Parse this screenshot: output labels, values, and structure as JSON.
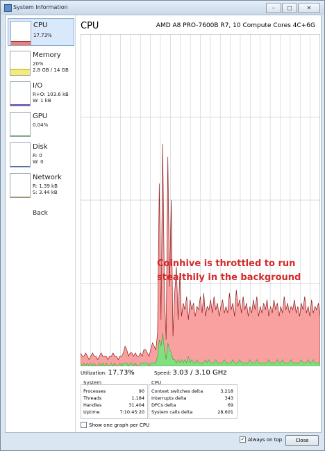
{
  "window": {
    "title": "System Information",
    "controls": {
      "minimize": "–",
      "maximize": "□",
      "close": "✕"
    }
  },
  "sidebar": {
    "items": [
      {
        "name": "CPU",
        "lines": [
          "17.73%"
        ]
      },
      {
        "name": "Memory",
        "lines": [
          "20%",
          "2.8 GB / 14 GB"
        ]
      },
      {
        "name": "I/O",
        "lines": [
          "R+O: 103.6 kB",
          "W: 1 kB"
        ]
      },
      {
        "name": "GPU",
        "lines": [
          "0.04%"
        ]
      },
      {
        "name": "Disk",
        "lines": [
          "R: 0",
          "W: 0"
        ]
      },
      {
        "name": "Network",
        "lines": [
          "R: 1.39 kB",
          "S: 3.44 kB"
        ]
      }
    ],
    "back": "Back"
  },
  "main": {
    "title": "CPU",
    "model": "AMD A8 PRO-7600B R7, 10 Compute Cores 4C+6G",
    "annotation": [
      "Coinhive is throttled to run",
      "stealthily in the background"
    ],
    "utilization_label": "Utilization:",
    "utilization_value": "17.73%",
    "speed_label": "Speed:",
    "speed_value": "3.03 / 3.10 GHz",
    "system": {
      "label": "System",
      "rows": [
        {
          "k": "Processes",
          "v": "90"
        },
        {
          "k": "Threads",
          "v": "1,184"
        },
        {
          "k": "Handles",
          "v": "31,404"
        },
        {
          "k": "Uptime",
          "v": "7:10:45:20"
        }
      ]
    },
    "cpu": {
      "label": "CPU",
      "rows": [
        {
          "k": "Context switches delta",
          "v": "3,218"
        },
        {
          "k": "Interrupts delta",
          "v": "343"
        },
        {
          "k": "DPCs delta",
          "v": "69"
        },
        {
          "k": "System calls delta",
          "v": "28,601"
        }
      ]
    },
    "show_one_graph": "Show one graph per CPU"
  },
  "footer": {
    "always_on_top": "Always on top",
    "close": "Close"
  },
  "colors": {
    "graph_fill": "#f9a0a0",
    "graph_line": "#8a1e1e",
    "kernel_fill": "#7fe07f",
    "annotation": "#d42a2a",
    "grid": "#c9cdd2"
  },
  "chart_data": {
    "type": "area",
    "ylim": [
      0,
      100
    ],
    "series": [
      {
        "values": [
          4,
          3,
          3,
          4,
          3,
          2,
          3,
          4,
          3,
          3,
          2,
          3,
          4,
          3,
          3,
          3,
          2,
          3,
          3,
          4,
          3,
          3,
          2,
          3,
          3,
          4,
          6,
          5,
          3,
          4,
          4,
          3,
          4,
          3,
          3,
          4,
          3,
          5,
          5,
          4,
          3,
          5,
          7,
          6,
          5,
          10,
          55,
          14,
          67,
          22,
          8,
          63,
          24,
          50,
          9,
          22,
          30,
          14,
          28,
          15,
          19,
          17,
          21,
          14,
          20,
          17,
          19,
          15,
          18,
          17,
          21,
          16,
          22,
          15,
          18,
          17,
          20,
          16,
          21,
          17,
          19,
          15,
          18,
          20,
          16,
          18,
          16,
          22,
          17,
          19,
          15,
          23,
          18,
          20,
          16,
          21,
          17,
          19,
          15,
          18,
          16,
          20,
          17,
          21,
          15,
          18,
          16,
          19,
          17,
          20,
          15,
          18,
          16,
          20,
          17,
          19,
          15,
          18,
          16,
          21,
          17,
          19,
          16,
          18,
          17,
          20,
          16,
          18,
          15,
          19,
          17,
          21,
          16,
          18,
          15,
          20,
          16,
          18,
          17,
          19,
          15
        ]
      },
      {
        "values": [
          1,
          0,
          1,
          0,
          1,
          0,
          1,
          0,
          1,
          0,
          0,
          1,
          0,
          1,
          0,
          1,
          0,
          0,
          1,
          0,
          1,
          0,
          0,
          1,
          0,
          1,
          1,
          1,
          0,
          1,
          1,
          0,
          1,
          0,
          0,
          1,
          1,
          1,
          1,
          1,
          0,
          1,
          1,
          1,
          1,
          3,
          8,
          6,
          10,
          5,
          2,
          7,
          5,
          4,
          2,
          2,
          1,
          2,
          1,
          2,
          1,
          2,
          1,
          3,
          1,
          2,
          1,
          1,
          2,
          1,
          1,
          1,
          1,
          2,
          1,
          2,
          1,
          1,
          1,
          2,
          1,
          1,
          1,
          1,
          2,
          1,
          1,
          1,
          1,
          2,
          1,
          1,
          1,
          2,
          1,
          1,
          1,
          1,
          1,
          2,
          1,
          1,
          1,
          2,
          1,
          1,
          1,
          1,
          1,
          1,
          2,
          1,
          1,
          1,
          1,
          2,
          1,
          1,
          2,
          1,
          1,
          1,
          1,
          2,
          1,
          1,
          1,
          1,
          1,
          2,
          1,
          1,
          1,
          2,
          1,
          1,
          2,
          1,
          1,
          1,
          1
        ]
      }
    ]
  }
}
